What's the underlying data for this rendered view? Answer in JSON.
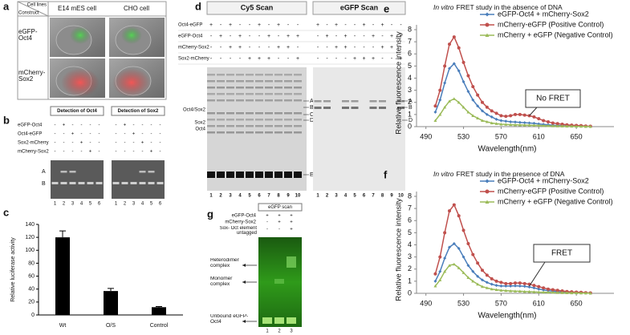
{
  "panel_a": {
    "label": "a",
    "corner_top": "Cell lines",
    "corner_bottom": "Construct",
    "columns": [
      "E14 mES cell",
      "CHO cell"
    ],
    "rows": [
      "eGFP-Oct4",
      "mCherry-Sox2"
    ]
  },
  "panel_b": {
    "label": "b",
    "row_labels": [
      "eGFP-Oct4",
      "Oct4-eGFP",
      "Sox2-mCherry",
      "mCherry-Sox2"
    ],
    "band_labels": [
      "A",
      "B"
    ],
    "gels": [
      {
        "title": "Detection of Oct4",
        "signs": [
          [
            "-",
            "+",
            "-",
            "-",
            "-",
            "-"
          ],
          [
            "-",
            "-",
            "+",
            "-",
            "-",
            "-"
          ],
          [
            "-",
            "-",
            "-",
            "+",
            "-",
            "-"
          ],
          [
            "-",
            "-",
            "-",
            "-",
            "+",
            "-"
          ]
        ],
        "lanes": [
          "1",
          "2",
          "3",
          "4",
          "5",
          "6"
        ]
      },
      {
        "title": "Detection of Sox2",
        "signs": [
          [
            "-",
            "+",
            "-",
            "-",
            "-",
            "-"
          ],
          [
            "-",
            "-",
            "+",
            "-",
            "-",
            "-"
          ],
          [
            "-",
            "-",
            "-",
            "+",
            "-",
            "-"
          ],
          [
            "-",
            "-",
            "-",
            "-",
            "+",
            "-"
          ]
        ],
        "lanes": [
          "1",
          "2",
          "3",
          "4",
          "5",
          "6"
        ]
      }
    ]
  },
  "panel_d": {
    "label": "d",
    "row_labels": [
      "Oct4-eGFP",
      "eGFP-Oct4",
      "mCherry-Sox2",
      "Sox2-mCherry"
    ],
    "left_labels": [
      "Oct4/Sox2",
      "Sox2",
      "Oct4"
    ],
    "gels": [
      {
        "title": "Cy5 Scan",
        "band_labels": [
          "A",
          "B",
          "C",
          "D",
          "E"
        ],
        "lanes": [
          "1",
          "2",
          "3",
          "4",
          "5",
          "6",
          "7",
          "8",
          "9",
          "10"
        ],
        "signs": [
          [
            "+",
            "-",
            "+",
            "-",
            "-",
            "+",
            "-",
            "+",
            "-",
            "-"
          ],
          [
            "-",
            "+",
            "-",
            "+",
            "-",
            "-",
            "+",
            "-",
            "+",
            "+"
          ],
          [
            "-",
            "-",
            "+",
            "+",
            "-",
            "-",
            "-",
            "+",
            "+",
            "-"
          ],
          [
            "-",
            "-",
            "-",
            "-",
            "+",
            "+",
            "+",
            "-",
            "-",
            "+"
          ]
        ]
      },
      {
        "title": "eGFP Scan",
        "band_labels": [
          "A",
          "B",
          "D"
        ],
        "lanes": [
          "1",
          "2",
          "3",
          "4",
          "5",
          "6",
          "7",
          "8",
          "9",
          "10"
        ],
        "signs": [
          [
            "+",
            "-",
            "+",
            "-",
            "-",
            "+",
            "-",
            "+",
            "-",
            "-"
          ],
          [
            "-",
            "+",
            "-",
            "+",
            "-",
            "-",
            "+",
            "-",
            "+",
            "+"
          ],
          [
            "-",
            "-",
            "+",
            "+",
            "-",
            "-",
            "-",
            "+",
            "+",
            "-"
          ],
          [
            "-",
            "-",
            "-",
            "-",
            "+",
            "+",
            "+",
            "-",
            "-",
            "+"
          ]
        ]
      }
    ]
  },
  "panel_g": {
    "label": "g",
    "header": "eGFP scan",
    "row_labels": [
      "eGFP-Oct4",
      "mCherry-Sox2",
      "Sox- Oct element untagged"
    ],
    "signs": [
      [
        "+",
        "+",
        "+"
      ],
      [
        "-",
        "+",
        "+"
      ],
      [
        "-",
        "-",
        "+"
      ]
    ],
    "band_labels": [
      "Heterodimer complex",
      "Monomer complex",
      "Unbound eGFP-Oct4"
    ],
    "lanes": [
      "1",
      "2",
      "3"
    ]
  },
  "chart_data": [
    {
      "type": "bar",
      "label": "c",
      "y_label": "Relative luciferase activity",
      "categories": [
        "Wt",
        "O/S",
        "Control"
      ],
      "values": [
        120,
        37,
        12
      ],
      "errors": [
        10,
        4,
        1
      ],
      "color": "#000000",
      "ylim": [
        0,
        140
      ],
      "yticks": [
        0,
        20,
        40,
        60,
        80,
        100,
        120,
        140
      ],
      "grid": false
    },
    {
      "type": "line",
      "label": "e",
      "title_italic": "In vitro",
      "title": "FRET study in the absence of DNA",
      "x_label": "Wavelength(nm)",
      "y_label": "Relative fluorescence intensity",
      "annotation": "No FRET",
      "xlim": [
        480,
        690
      ],
      "xticks": [
        490,
        530,
        570,
        610,
        650
      ],
      "ylim": [
        0,
        8
      ],
      "yticks": [
        0,
        1,
        2,
        3,
        4,
        5,
        6,
        7,
        8
      ],
      "grid": false,
      "x": [
        500,
        505,
        510,
        515,
        520,
        525,
        530,
        535,
        540,
        545,
        550,
        555,
        560,
        565,
        570,
        575,
        580,
        585,
        590,
        595,
        600,
        605,
        610,
        615,
        620,
        625,
        630,
        635,
        640,
        645,
        650,
        655,
        660,
        665
      ],
      "series": [
        {
          "name": "eGFP-Oct4 + mCherry-Sox2",
          "color": "#4a7ebb",
          "marker": "diamond",
          "values": [
            1.2,
            2.2,
            3.6,
            4.8,
            5.2,
            4.6,
            3.7,
            2.9,
            2.2,
            1.7,
            1.3,
            1.0,
            0.8,
            0.6,
            0.5,
            0.45,
            0.4,
            0.38,
            0.35,
            0.32,
            0.3,
            0.27,
            0.22,
            0.18,
            0.15,
            0.12,
            0.1,
            0.08,
            0.06,
            0.05,
            0.04,
            0.03,
            0.02,
            0.01
          ]
        },
        {
          "name": "mCherry-eGFP (Positive Control)",
          "color": "#c0504d",
          "marker": "circle",
          "values": [
            1.7,
            3.0,
            5.0,
            6.8,
            7.4,
            6.5,
            5.3,
            4.2,
            3.3,
            2.6,
            2.0,
            1.6,
            1.3,
            1.1,
            0.9,
            0.85,
            0.9,
            1.0,
            1.0,
            0.95,
            0.9,
            0.8,
            0.65,
            0.5,
            0.4,
            0.3,
            0.25,
            0.2,
            0.15,
            0.12,
            0.1,
            0.08,
            0.05,
            0.03
          ]
        },
        {
          "name": "mCherry + eGFP (Negative Control)",
          "color": "#9bbb59",
          "marker": "triangle",
          "values": [
            0.5,
            1.0,
            1.6,
            2.1,
            2.3,
            2.0,
            1.6,
            1.2,
            0.9,
            0.7,
            0.5,
            0.4,
            0.3,
            0.25,
            0.2,
            0.18,
            0.16,
            0.15,
            0.14,
            0.13,
            0.12,
            0.11,
            0.1,
            0.08,
            0.07,
            0.06,
            0.05,
            0.04,
            0.03,
            0.03,
            0.02,
            0.02,
            0.01,
            0.01
          ]
        }
      ]
    },
    {
      "type": "line",
      "label": "f",
      "title_italic": "In vitro",
      "title": "FRET study in the presence of DNA",
      "x_label": "Wavelength(nm)",
      "y_label": "Relative fluorescence intensity",
      "annotation": "FRET",
      "xlim": [
        480,
        690
      ],
      "xticks": [
        490,
        530,
        570,
        610,
        650
      ],
      "ylim": [
        0,
        8
      ],
      "yticks": [
        0,
        1,
        2,
        3,
        4,
        5,
        6,
        7,
        8
      ],
      "grid": false,
      "x": [
        500,
        505,
        510,
        515,
        520,
        525,
        530,
        535,
        540,
        545,
        550,
        555,
        560,
        565,
        570,
        575,
        580,
        585,
        590,
        595,
        600,
        605,
        610,
        615,
        620,
        625,
        630,
        635,
        640,
        645,
        650,
        655,
        660,
        665
      ],
      "series": [
        {
          "name": "eGFP-Oct4 + mCherry-Sox2",
          "color": "#4a7ebb",
          "marker": "diamond",
          "values": [
            1.0,
            1.8,
            2.9,
            3.8,
            4.1,
            3.7,
            3.0,
            2.3,
            1.8,
            1.4,
            1.1,
            0.9,
            0.75,
            0.65,
            0.6,
            0.6,
            0.6,
            0.62,
            0.6,
            0.58,
            0.52,
            0.45,
            0.35,
            0.28,
            0.22,
            0.18,
            0.14,
            0.1,
            0.08,
            0.06,
            0.05,
            0.04,
            0.03,
            0.02
          ]
        },
        {
          "name": "mCherry-eGFP (Positive Control)",
          "color": "#c0504d",
          "marker": "circle",
          "values": [
            1.6,
            3.0,
            5.0,
            6.8,
            7.3,
            6.4,
            5.2,
            4.1,
            3.2,
            2.5,
            1.9,
            1.5,
            1.2,
            1.0,
            0.9,
            0.8,
            0.8,
            0.85,
            0.85,
            0.8,
            0.75,
            0.65,
            0.55,
            0.45,
            0.35,
            0.3,
            0.25,
            0.2,
            0.15,
            0.12,
            0.1,
            0.08,
            0.05,
            0.03
          ]
        },
        {
          "name": "mCherry + eGFP (Negative Control)",
          "color": "#9bbb59",
          "marker": "triangle",
          "values": [
            0.6,
            1.1,
            1.8,
            2.3,
            2.4,
            2.1,
            1.7,
            1.3,
            1.0,
            0.75,
            0.55,
            0.45,
            0.35,
            0.3,
            0.25,
            0.22,
            0.2,
            0.18,
            0.17,
            0.15,
            0.14,
            0.12,
            0.1,
            0.09,
            0.08,
            0.07,
            0.06,
            0.05,
            0.04,
            0.03,
            0.03,
            0.02,
            0.02,
            0.01
          ]
        }
      ]
    }
  ]
}
